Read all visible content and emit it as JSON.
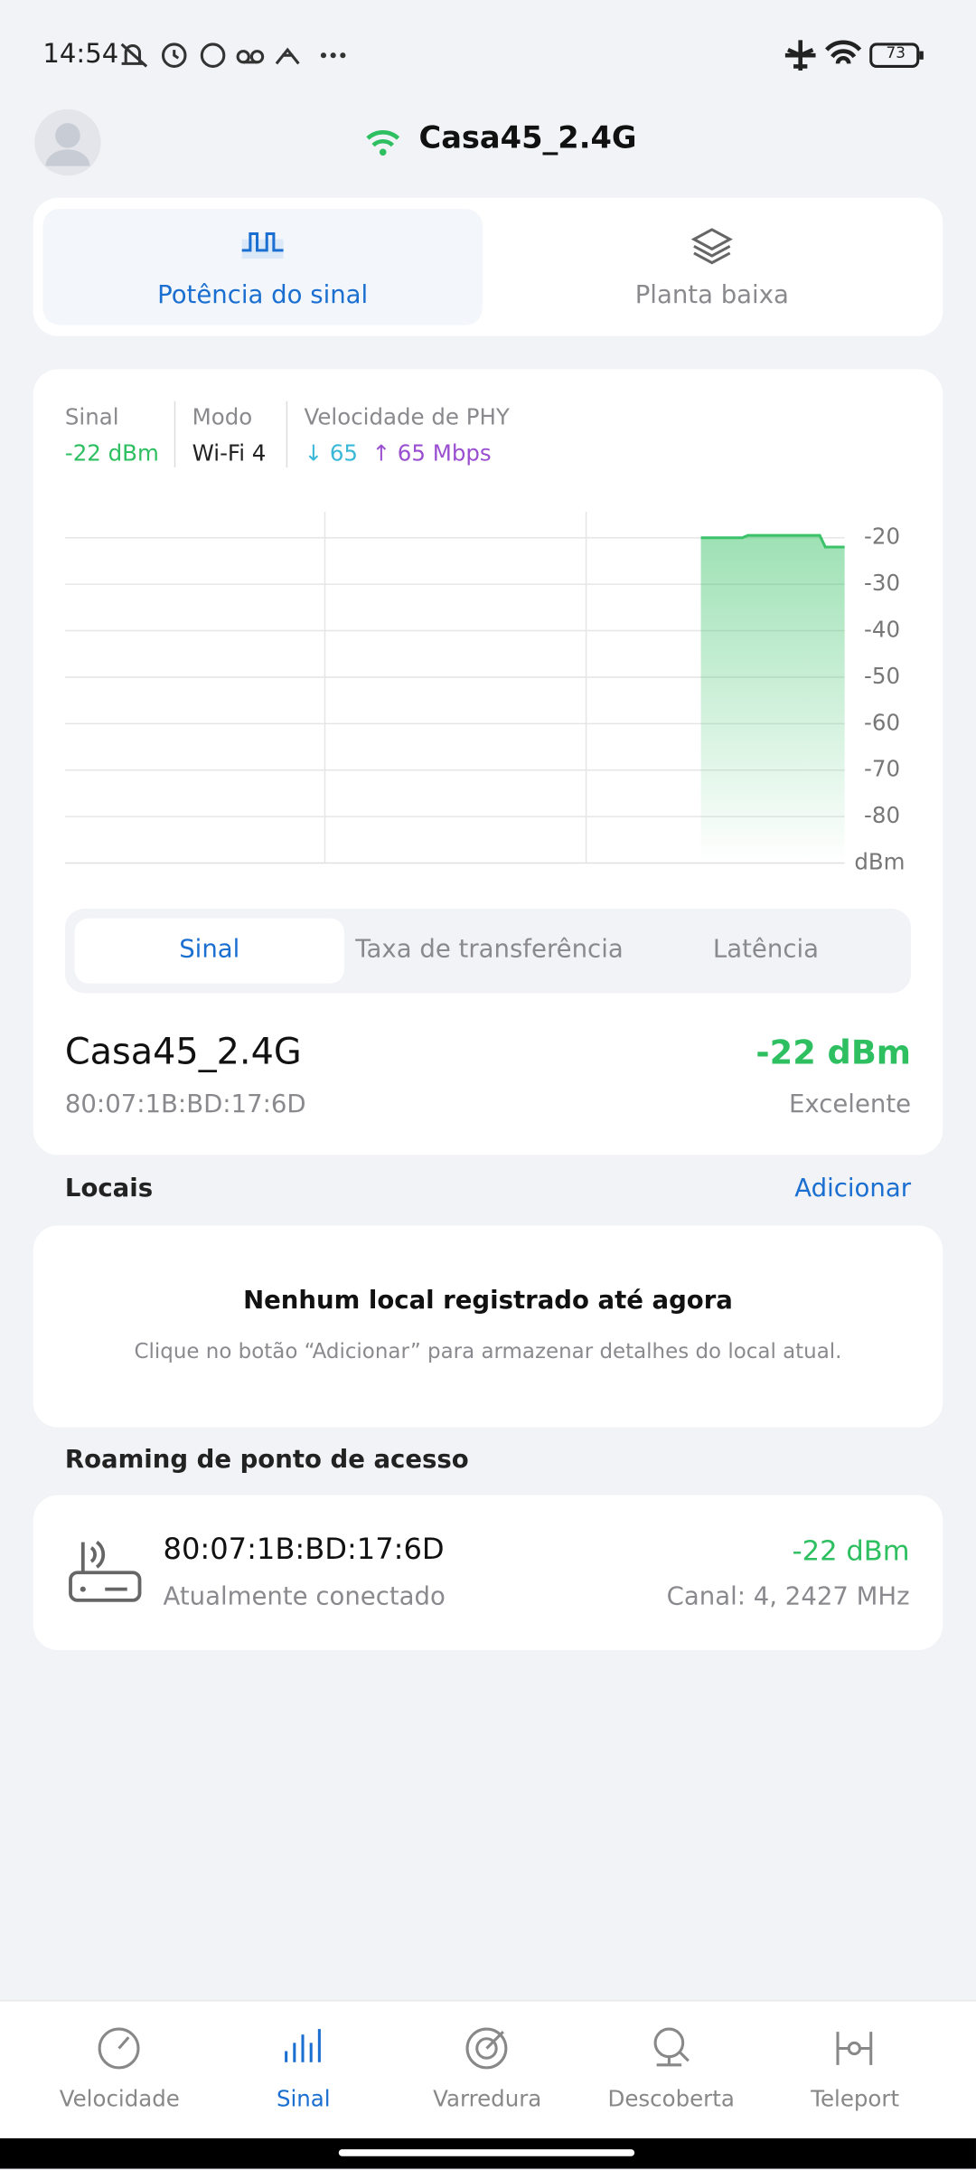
{
  "status_bar": {
    "time": "14:54",
    "battery": "73"
  },
  "header": {
    "ssid": "Casa45_2.4G"
  },
  "tabs": {
    "items": [
      "Potência do sinal",
      "Planta baixa"
    ],
    "active": 0
  },
  "stats": {
    "signal_label": "Sinal",
    "signal_value": "-22 dBm",
    "mode_label": "Modo",
    "mode_value": "Wi-Fi 4",
    "phy_label": "Velocidade de PHY",
    "phy_down": "↓ 65",
    "phy_up": "↑ 65 Mbps"
  },
  "signal_chart": {
    "ylim": [
      -90,
      -15
    ],
    "yticks": [
      -20,
      -30,
      -40,
      -50,
      -60,
      -70,
      -80
    ],
    "unit": "dBm",
    "color": "#3cc36a",
    "grid": true,
    "values": [
      -20,
      -20,
      -19.5,
      -19.5,
      -22,
      -22
    ]
  },
  "segments": {
    "items": [
      "Sinal",
      "Taxa de transferência",
      "Latência"
    ],
    "active": 0
  },
  "network": {
    "name": "Casa45_2.4G",
    "mac": "80:07:1B:BD:17:6D",
    "signal": "-22 dBm",
    "quality": "Excelente"
  },
  "locations": {
    "title": "Locais",
    "action": "Adicionar",
    "empty_title": "Nenhum local registrado até agora",
    "empty_text": "Clique no botão “Adicionar” para armazenar detalhes do local atual."
  },
  "roaming": {
    "title": "Roaming de ponto de acesso",
    "mac": "80:07:1B:BD:17:6D",
    "status": "Atualmente conectado",
    "signal": "-22 dBm",
    "channel": "Canal: 4, 2427 MHz"
  },
  "nav": {
    "items": [
      "Velocidade",
      "Sinal",
      "Varredura",
      "Descoberta",
      "Teleport"
    ],
    "active": 1
  }
}
